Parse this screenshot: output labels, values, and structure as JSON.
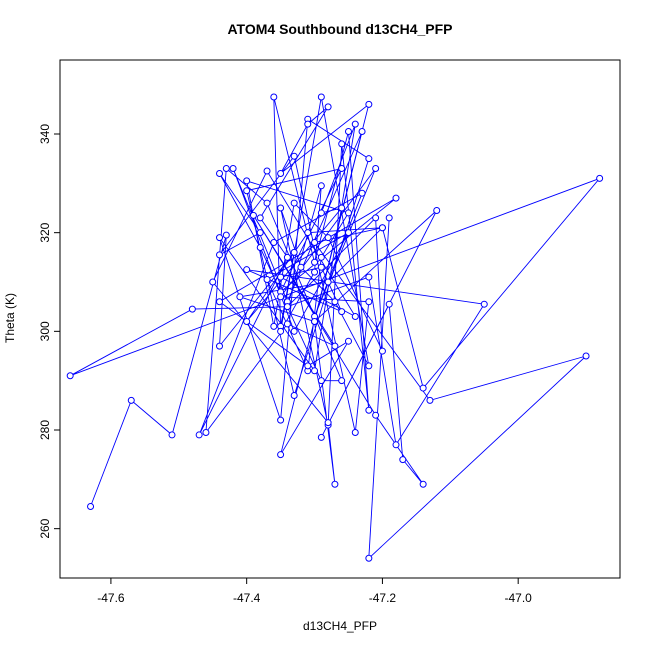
{
  "chart_data": {
    "type": "line",
    "title": "ATOM4 Southbound d13CH4_PFP",
    "xlabel": "d13CH4_PFP",
    "ylabel": "Theta (K)",
    "xlim": [
      -47.675,
      -46.85
    ],
    "ylim": [
      250,
      355
    ],
    "xticks": [
      -47.6,
      -47.4,
      -47.2,
      -47.0
    ],
    "xtick_labels": [
      "-47.6",
      "-47.4",
      "-47.2",
      "-47.0"
    ],
    "yticks": [
      260,
      280,
      300,
      320,
      340
    ],
    "ytick_labels": [
      "260",
      "280",
      "300",
      "320",
      "340"
    ],
    "grid": false,
    "legend": "none",
    "series_color": "#0000ff",
    "marker": "open-circle",
    "series": [
      {
        "points": [
          [
            -47.63,
            264.5
          ],
          [
            -47.57,
            286.0
          ],
          [
            -47.51,
            279.0
          ],
          [
            -47.43,
            319.5
          ],
          [
            -47.44,
            297.0
          ],
          [
            -47.33,
            316.0
          ],
          [
            -47.35,
            301.0
          ],
          [
            -47.36,
            347.5
          ],
          [
            -47.3,
            314.0
          ],
          [
            -47.25,
            340.5
          ],
          [
            -47.22,
            284.0
          ],
          [
            -47.26,
            338.0
          ],
          [
            -47.28,
            281.0
          ],
          [
            -47.35,
            325.0
          ],
          [
            -47.32,
            313.0
          ],
          [
            -47.27,
            306.0
          ],
          [
            -47.22,
            293.0
          ],
          [
            -47.29,
            347.5
          ],
          [
            -47.35,
            300.0
          ],
          [
            -47.3,
            312.0
          ],
          [
            -47.29,
            329.5
          ],
          [
            -47.34,
            305.0
          ],
          [
            -47.21,
            323.0
          ],
          [
            -47.2,
            296.0
          ],
          [
            -47.28,
            319.0
          ],
          [
            -47.33,
            326.0
          ],
          [
            -47.36,
            301.0
          ],
          [
            -47.4,
            330.5
          ],
          [
            -47.25,
            324.0
          ],
          [
            -47.29,
            315.0
          ],
          [
            -47.31,
            292.0
          ],
          [
            -47.37,
            310.5
          ],
          [
            -47.25,
            320.0
          ],
          [
            -47.33,
            300.0
          ],
          [
            -47.42,
            333.0
          ],
          [
            -47.34,
            306.0
          ],
          [
            -47.23,
            340.5
          ],
          [
            -47.3,
            302.0
          ],
          [
            -47.41,
            307.0
          ],
          [
            -47.28,
            310.0
          ],
          [
            -47.2,
            321.0
          ],
          [
            -47.31,
            320.0
          ],
          [
            -47.4,
            302.0
          ],
          [
            -47.26,
            325.0
          ],
          [
            -47.29,
            324.0
          ],
          [
            -47.24,
            342.0
          ],
          [
            -47.3,
            292.0
          ],
          [
            -47.44,
            319.0
          ],
          [
            -47.35,
            282.0
          ],
          [
            -47.31,
            343.0
          ],
          [
            -47.22,
            335.0
          ],
          [
            -47.33,
            287.0
          ],
          [
            -47.4,
            328.5
          ],
          [
            -47.26,
            333.0
          ],
          [
            -47.35,
            308.0
          ],
          [
            -47.18,
            327.0
          ],
          [
            -47.44,
            306.0
          ],
          [
            -47.31,
            293.0
          ],
          [
            -47.25,
            298.0
          ],
          [
            -47.35,
            275.0
          ],
          [
            -47.22,
            346.0
          ],
          [
            -47.35,
            332.0
          ],
          [
            -47.31,
            342.0
          ],
          [
            -47.28,
            345.5
          ],
          [
            -47.38,
            323.0
          ],
          [
            -47.34,
            315.0
          ],
          [
            -47.47,
            279.0
          ],
          [
            -47.36,
            318.0
          ],
          [
            -47.23,
            328.0
          ],
          [
            -47.3,
            303.0
          ],
          [
            -47.21,
            333.0
          ],
          [
            -47.35,
            307.0
          ],
          [
            -47.22,
            306.0
          ],
          [
            -47.24,
            279.5
          ],
          [
            -47.33,
            335.5
          ],
          [
            -47.44,
            315.5
          ],
          [
            -47.38,
            320.0
          ],
          [
            -47.44,
            332.0
          ],
          [
            -47.38,
            317.0
          ],
          [
            -47.29,
            290.0
          ],
          [
            -47.26,
            290.0
          ],
          [
            -47.37,
            326.0
          ],
          [
            -47.43,
            333.0
          ],
          [
            -47.46,
            279.5
          ],
          [
            -47.34,
            301.5
          ],
          [
            -47.27,
            297.0
          ],
          [
            -47.39,
            323.5
          ],
          [
            -47.21,
            283.0
          ],
          [
            -47.14,
            269.0
          ],
          [
            -47.17,
            274.0
          ],
          [
            -47.19,
            305.5
          ],
          [
            -47.29,
            278.5
          ],
          [
            -47.12,
            324.5
          ],
          [
            -47.3,
            302.0
          ],
          [
            -47.27,
            269.0
          ],
          [
            -47.28,
            281.5
          ],
          [
            -47.45,
            310.0
          ],
          [
            -47.37,
            332.5
          ],
          [
            -47.24,
            303.0
          ],
          [
            -47.35,
            311.0
          ],
          [
            -47.29,
            313.0
          ],
          [
            -47.26,
            304.0
          ],
          [
            -47.4,
            312.5
          ],
          [
            -47.05,
            305.5
          ],
          [
            -47.18,
            277.0
          ],
          [
            -47.22,
            311.0
          ],
          [
            -47.34,
            305.0
          ],
          [
            -47.48,
            304.5
          ],
          [
            -47.66,
            291.0
          ],
          [
            -46.88,
            331.0
          ],
          [
            -47.14,
            288.5
          ],
          [
            -47.2,
            321.0
          ],
          [
            -47.3,
            318.0
          ],
          [
            -47.13,
            286.0
          ],
          [
            -46.9,
            295.0
          ],
          [
            -47.22,
            254.0
          ],
          [
            -47.19,
            323.0
          ]
        ]
      }
    ]
  }
}
